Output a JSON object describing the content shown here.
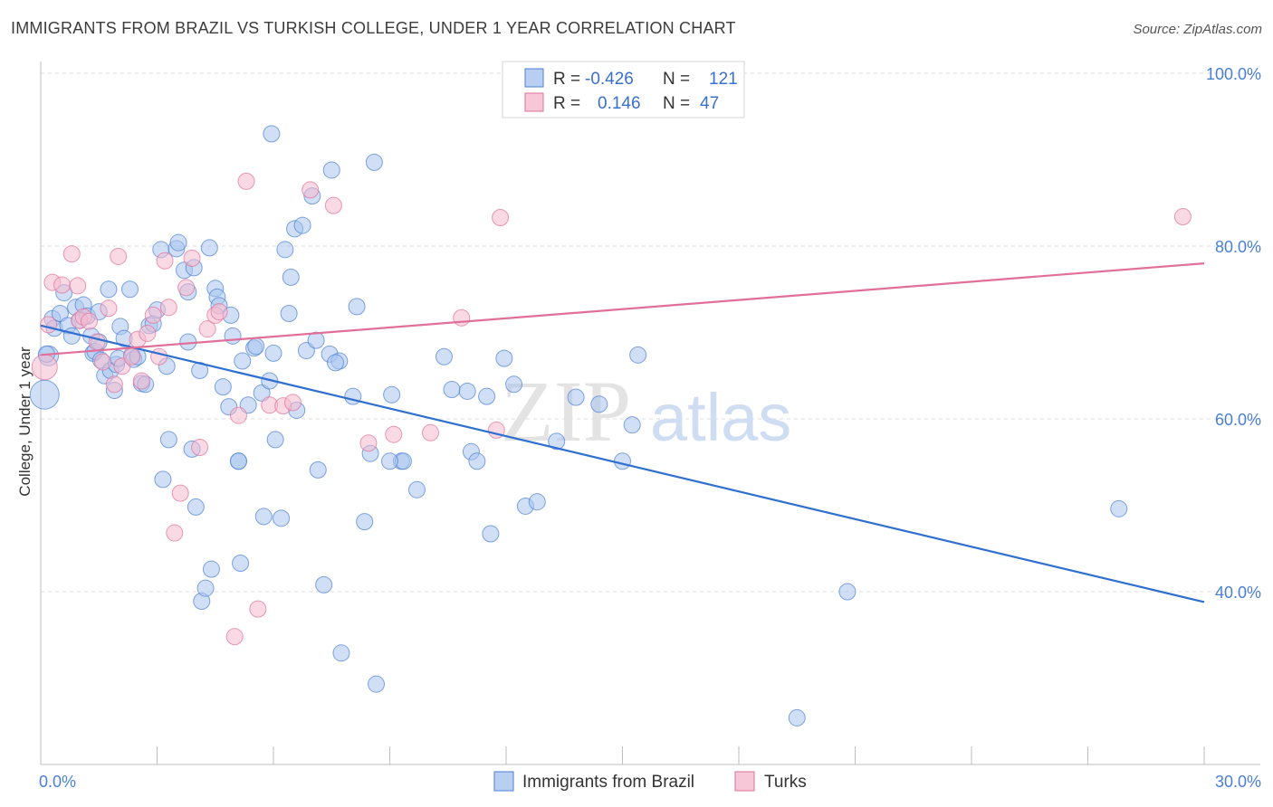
{
  "title": "IMMIGRANTS FROM BRAZIL VS TURKISH COLLEGE, UNDER 1 YEAR CORRELATION CHART",
  "source": "Source: ZipAtlas.com",
  "watermark": {
    "zip": "ZIP",
    "atlas": "atlas"
  },
  "colors": {
    "blue": "#4a7fd6",
    "blue_fill": "#a9c4ee",
    "pink": "#e0709a",
    "pink_fill": "#f4b9cd",
    "grid": "#d9d9d9"
  },
  "legend": {
    "rows": [
      {
        "r_label": "R =",
        "r_value": "-0.426",
        "n_label": "N =",
        "n_value": "121"
      },
      {
        "r_label": "R =",
        "r_value": "0.146",
        "n_label": "N =",
        "n_value": "47"
      }
    ]
  },
  "chart_data": {
    "type": "scatter",
    "title": "IMMIGRANTS FROM BRAZIL VS TURKISH COLLEGE, UNDER 1 YEAR CORRELATION CHART",
    "ylabel": "College, Under 1 year",
    "xlim": [
      0,
      30
    ],
    "ylim": [
      20,
      102
    ],
    "x_ticks": [
      "0.0%",
      "30.0%"
    ],
    "y_ticks": [
      {
        "value": 40,
        "label": "40.0%"
      },
      {
        "value": 60,
        "label": "60.0%"
      },
      {
        "value": 80,
        "label": "80.0%"
      },
      {
        "value": 100,
        "label": "100.0%"
      }
    ],
    "grid": true,
    "series": [
      {
        "name": "Immigrants from Brazil",
        "color": "#4a7fd6",
        "trend": {
          "x": [
            0,
            30
          ],
          "y": [
            70.8,
            38.8
          ]
        },
        "points": [
          [
            0.1,
            62.8
          ],
          [
            0.2,
            67.3
          ],
          [
            0.3,
            71.6
          ],
          [
            0.35,
            70.5
          ],
          [
            0.5,
            72.2
          ],
          [
            0.6,
            74.6
          ],
          [
            0.7,
            70.8
          ],
          [
            0.8,
            69.6
          ],
          [
            0.9,
            72.9
          ],
          [
            1.0,
            71.4
          ],
          [
            1.1,
            73.2
          ],
          [
            1.2,
            71.9
          ],
          [
            1.3,
            69.6
          ],
          [
            1.35,
            67.6
          ],
          [
            1.4,
            67.8
          ],
          [
            1.5,
            68.9
          ],
          [
            1.55,
            66.8
          ],
          [
            1.65,
            65.0
          ],
          [
            1.75,
            75.0
          ],
          [
            1.8,
            65.6
          ],
          [
            1.9,
            63.3
          ],
          [
            1.95,
            66.3
          ],
          [
            2.0,
            67.0
          ],
          [
            2.05,
            70.7
          ],
          [
            2.15,
            69.3
          ],
          [
            2.3,
            75.0
          ],
          [
            2.35,
            67.4
          ],
          [
            2.4,
            66.9
          ],
          [
            2.5,
            67.2
          ],
          [
            2.6,
            64.1
          ],
          [
            2.7,
            64.0
          ],
          [
            2.8,
            70.8
          ],
          [
            2.9,
            71.0
          ],
          [
            3.0,
            72.6
          ],
          [
            3.1,
            79.6
          ],
          [
            3.15,
            53.0
          ],
          [
            3.25,
            66.1
          ],
          [
            3.3,
            57.6
          ],
          [
            3.5,
            79.7
          ],
          [
            3.55,
            80.4
          ],
          [
            3.7,
            77.2
          ],
          [
            3.8,
            68.9
          ],
          [
            3.9,
            56.5
          ],
          [
            3.95,
            77.5
          ],
          [
            4.0,
            49.8
          ],
          [
            4.1,
            65.6
          ],
          [
            4.15,
            38.9
          ],
          [
            4.25,
            40.4
          ],
          [
            4.35,
            79.8
          ],
          [
            4.4,
            42.6
          ],
          [
            4.5,
            75.1
          ],
          [
            4.55,
            74.1
          ],
          [
            4.6,
            73.1
          ],
          [
            4.7,
            63.7
          ],
          [
            4.85,
            61.4
          ],
          [
            4.9,
            72.0
          ],
          [
            4.95,
            69.6
          ],
          [
            5.1,
            55.1
          ],
          [
            5.15,
            43.3
          ],
          [
            5.2,
            66.7
          ],
          [
            5.35,
            61.6
          ],
          [
            5.5,
            68.2
          ],
          [
            5.55,
            68.4
          ],
          [
            5.7,
            63.0
          ],
          [
            5.75,
            48.7
          ],
          [
            5.9,
            64.4
          ],
          [
            5.95,
            93.0
          ],
          [
            6.0,
            67.6
          ],
          [
            6.05,
            57.6
          ],
          [
            6.2,
            48.5
          ],
          [
            6.3,
            79.6
          ],
          [
            6.4,
            72.2
          ],
          [
            6.45,
            76.4
          ],
          [
            6.55,
            82.0
          ],
          [
            6.6,
            61.0
          ],
          [
            6.75,
            82.4
          ],
          [
            6.85,
            67.9
          ],
          [
            7.0,
            85.8
          ],
          [
            7.1,
            69.1
          ],
          [
            7.15,
            54.1
          ],
          [
            7.3,
            40.8
          ],
          [
            7.45,
            67.5
          ],
          [
            7.5,
            88.8
          ],
          [
            7.7,
            66.7
          ],
          [
            7.75,
            32.9
          ],
          [
            8.05,
            62.6
          ],
          [
            8.15,
            73.0
          ],
          [
            8.35,
            48.1
          ],
          [
            8.5,
            56.0
          ],
          [
            8.6,
            89.7
          ],
          [
            8.65,
            29.3
          ],
          [
            9.05,
            62.8
          ],
          [
            9.3,
            55.1
          ],
          [
            9.35,
            55.1
          ],
          [
            9.7,
            51.8
          ],
          [
            10.4,
            67.2
          ],
          [
            10.6,
            63.4
          ],
          [
            11.0,
            63.2
          ],
          [
            11.1,
            56.2
          ],
          [
            11.25,
            55.1
          ],
          [
            11.5,
            62.6
          ],
          [
            11.6,
            46.7
          ],
          [
            11.95,
            67.0
          ],
          [
            12.5,
            49.9
          ],
          [
            12.8,
            50.4
          ],
          [
            13.3,
            57.4
          ],
          [
            13.8,
            62.5
          ],
          [
            14.4,
            61.7
          ],
          [
            15.0,
            55.1
          ],
          [
            15.25,
            59.3
          ],
          [
            15.4,
            67.4
          ],
          [
            19.5,
            25.4
          ],
          [
            20.8,
            40.0
          ],
          [
            27.8,
            49.6
          ],
          [
            0.15,
            67.5
          ],
          [
            1.5,
            72.4
          ],
          [
            3.8,
            74.7
          ],
          [
            5.1,
            55.1
          ],
          [
            7.6,
            66.5
          ],
          [
            12.2,
            64.0
          ],
          [
            9.0,
            55.1
          ]
        ]
      },
      {
        "name": "Turks",
        "color": "#e0709a",
        "trend": {
          "x": [
            0,
            30
          ],
          "y": [
            67.4,
            78.0
          ]
        },
        "points": [
          [
            0.1,
            66.0
          ],
          [
            0.2,
            70.9
          ],
          [
            0.3,
            75.8
          ],
          [
            0.55,
            75.5
          ],
          [
            0.8,
            79.1
          ],
          [
            0.95,
            75.4
          ],
          [
            1.0,
            71.4
          ],
          [
            1.1,
            71.8
          ],
          [
            1.25,
            71.3
          ],
          [
            1.45,
            68.9
          ],
          [
            1.6,
            66.6
          ],
          [
            1.75,
            72.8
          ],
          [
            1.9,
            64.0
          ],
          [
            2.0,
            78.8
          ],
          [
            2.1,
            66.1
          ],
          [
            2.35,
            67.2
          ],
          [
            2.5,
            69.2
          ],
          [
            2.6,
            64.4
          ],
          [
            2.75,
            69.9
          ],
          [
            2.9,
            72.0
          ],
          [
            3.05,
            67.2
          ],
          [
            3.2,
            78.3
          ],
          [
            3.3,
            72.9
          ],
          [
            3.45,
            46.8
          ],
          [
            3.6,
            51.4
          ],
          [
            3.75,
            75.2
          ],
          [
            3.9,
            78.6
          ],
          [
            4.1,
            56.7
          ],
          [
            4.3,
            70.4
          ],
          [
            4.5,
            72.0
          ],
          [
            4.6,
            72.4
          ],
          [
            5.0,
            34.8
          ],
          [
            5.1,
            60.4
          ],
          [
            5.3,
            87.5
          ],
          [
            5.6,
            38.0
          ],
          [
            5.9,
            61.6
          ],
          [
            6.25,
            61.5
          ],
          [
            6.5,
            61.9
          ],
          [
            6.95,
            86.5
          ],
          [
            7.55,
            84.7
          ],
          [
            8.45,
            57.2
          ],
          [
            9.1,
            58.2
          ],
          [
            10.05,
            58.4
          ],
          [
            10.85,
            71.7
          ],
          [
            11.75,
            58.7
          ],
          [
            11.85,
            83.3
          ],
          [
            29.45,
            83.4
          ]
        ]
      }
    ]
  },
  "bottom_legend": [
    {
      "label": "Immigrants from Brazil",
      "color": "#4a7fd6"
    },
    {
      "label": "Turks",
      "color": "#e0709a"
    }
  ]
}
